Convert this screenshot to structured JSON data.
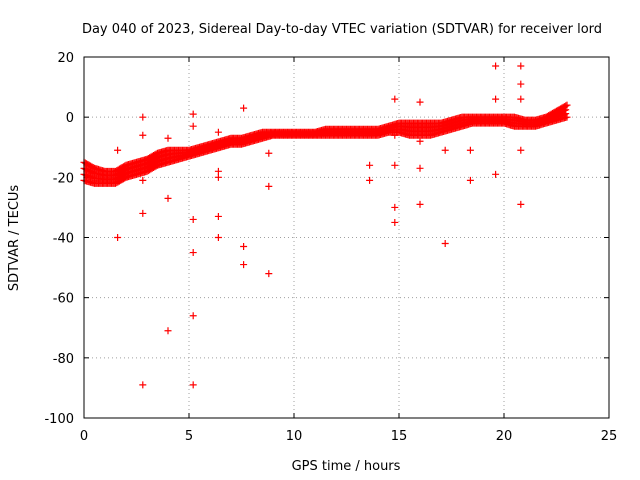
{
  "chart_data": {
    "type": "scatter",
    "title": "Day 040 of 2023, Sidereal Day-to-day VTEC variation (SDTVAR) for receiver lord",
    "xlabel": "GPS time / hours",
    "ylabel": "SDTVAR / TECUs",
    "xlim": [
      0,
      25
    ],
    "ylim": [
      -100,
      20
    ],
    "xticks": [
      0,
      5,
      10,
      15,
      20,
      25
    ],
    "yticks": [
      -100,
      -80,
      -60,
      -40,
      -20,
      0,
      20
    ],
    "grid": true,
    "marker": "+",
    "color": "#ff0000",
    "band": {
      "x": [
        0.0,
        0.5,
        1.0,
        1.5,
        2.0,
        2.5,
        3.0,
        3.5,
        4.0,
        4.5,
        5.0,
        5.5,
        6.0,
        6.5,
        7.0,
        7.5,
        8.0,
        8.5,
        9.0,
        9.5,
        10.0,
        10.5,
        11.0,
        11.5,
        12.0,
        12.5,
        13.0,
        13.5,
        14.0,
        14.5,
        15.0,
        15.5,
        16.0,
        16.5,
        17.0,
        17.5,
        18.0,
        18.5,
        19.0,
        19.5,
        20.0,
        20.5,
        21.0,
        21.5,
        22.0,
        22.5,
        23.0
      ],
      "upper": [
        -15,
        -17,
        -18,
        -18,
        -16,
        -15,
        -14,
        -12,
        -11,
        -11,
        -11,
        -10,
        -9,
        -8,
        -7,
        -7,
        -6,
        -5,
        -5,
        -5,
        -5,
        -5,
        -5,
        -4,
        -4,
        -4,
        -4,
        -4,
        -4,
        -3,
        -2,
        -2,
        -2,
        -2,
        -2,
        -1,
        0,
        0,
        0,
        0,
        0,
        0,
        -1,
        -1,
        0,
        2,
        4
      ],
      "lower": [
        -21,
        -22,
        -22,
        -22,
        -20,
        -19,
        -18,
        -16,
        -15,
        -14,
        -13,
        -12,
        -11,
        -10,
        -9,
        -9,
        -8,
        -7,
        -6,
        -6,
        -6,
        -6,
        -6,
        -6,
        -6,
        -6,
        -6,
        -6,
        -6,
        -5,
        -5,
        -6,
        -6,
        -6,
        -5,
        -4,
        -3,
        -2,
        -2,
        -2,
        -2,
        -3,
        -3,
        -3,
        -2,
        -1,
        0
      ]
    },
    "outliers": [
      {
        "x": 1.6,
        "y": -40
      },
      {
        "x": 1.6,
        "y": -11
      },
      {
        "x": 2.8,
        "y": -89
      },
      {
        "x": 2.8,
        "y": -32
      },
      {
        "x": 2.8,
        "y": -21
      },
      {
        "x": 2.8,
        "y": -6
      },
      {
        "x": 2.8,
        "y": 0
      },
      {
        "x": 4.0,
        "y": -71
      },
      {
        "x": 4.0,
        "y": -27
      },
      {
        "x": 4.0,
        "y": -7
      },
      {
        "x": 5.2,
        "y": -89
      },
      {
        "x": 5.2,
        "y": -66
      },
      {
        "x": 5.2,
        "y": -45
      },
      {
        "x": 5.2,
        "y": -34
      },
      {
        "x": 5.2,
        "y": -3
      },
      {
        "x": 5.2,
        "y": 1
      },
      {
        "x": 6.4,
        "y": -40
      },
      {
        "x": 6.4,
        "y": -33
      },
      {
        "x": 6.4,
        "y": -20
      },
      {
        "x": 6.4,
        "y": -18
      },
      {
        "x": 6.4,
        "y": -5
      },
      {
        "x": 7.6,
        "y": -49
      },
      {
        "x": 7.6,
        "y": -43
      },
      {
        "x": 7.6,
        "y": 3
      },
      {
        "x": 8.8,
        "y": -52
      },
      {
        "x": 8.8,
        "y": -23
      },
      {
        "x": 8.8,
        "y": -12
      },
      {
        "x": 13.6,
        "y": -21
      },
      {
        "x": 13.6,
        "y": -16
      },
      {
        "x": 14.8,
        "y": -35
      },
      {
        "x": 14.8,
        "y": -30
      },
      {
        "x": 14.8,
        "y": -16
      },
      {
        "x": 14.8,
        "y": -6
      },
      {
        "x": 14.8,
        "y": 6
      },
      {
        "x": 16.0,
        "y": -29
      },
      {
        "x": 16.0,
        "y": -17
      },
      {
        "x": 16.0,
        "y": -8
      },
      {
        "x": 16.0,
        "y": 5
      },
      {
        "x": 17.2,
        "y": -42
      },
      {
        "x": 17.2,
        "y": -11
      },
      {
        "x": 18.4,
        "y": -21
      },
      {
        "x": 18.4,
        "y": -11
      },
      {
        "x": 19.6,
        "y": -19
      },
      {
        "x": 19.6,
        "y": 6
      },
      {
        "x": 19.6,
        "y": 17
      },
      {
        "x": 20.8,
        "y": -29
      },
      {
        "x": 20.8,
        "y": -11
      },
      {
        "x": 20.8,
        "y": 6
      },
      {
        "x": 20.8,
        "y": 11
      },
      {
        "x": 20.8,
        "y": 17
      }
    ]
  }
}
